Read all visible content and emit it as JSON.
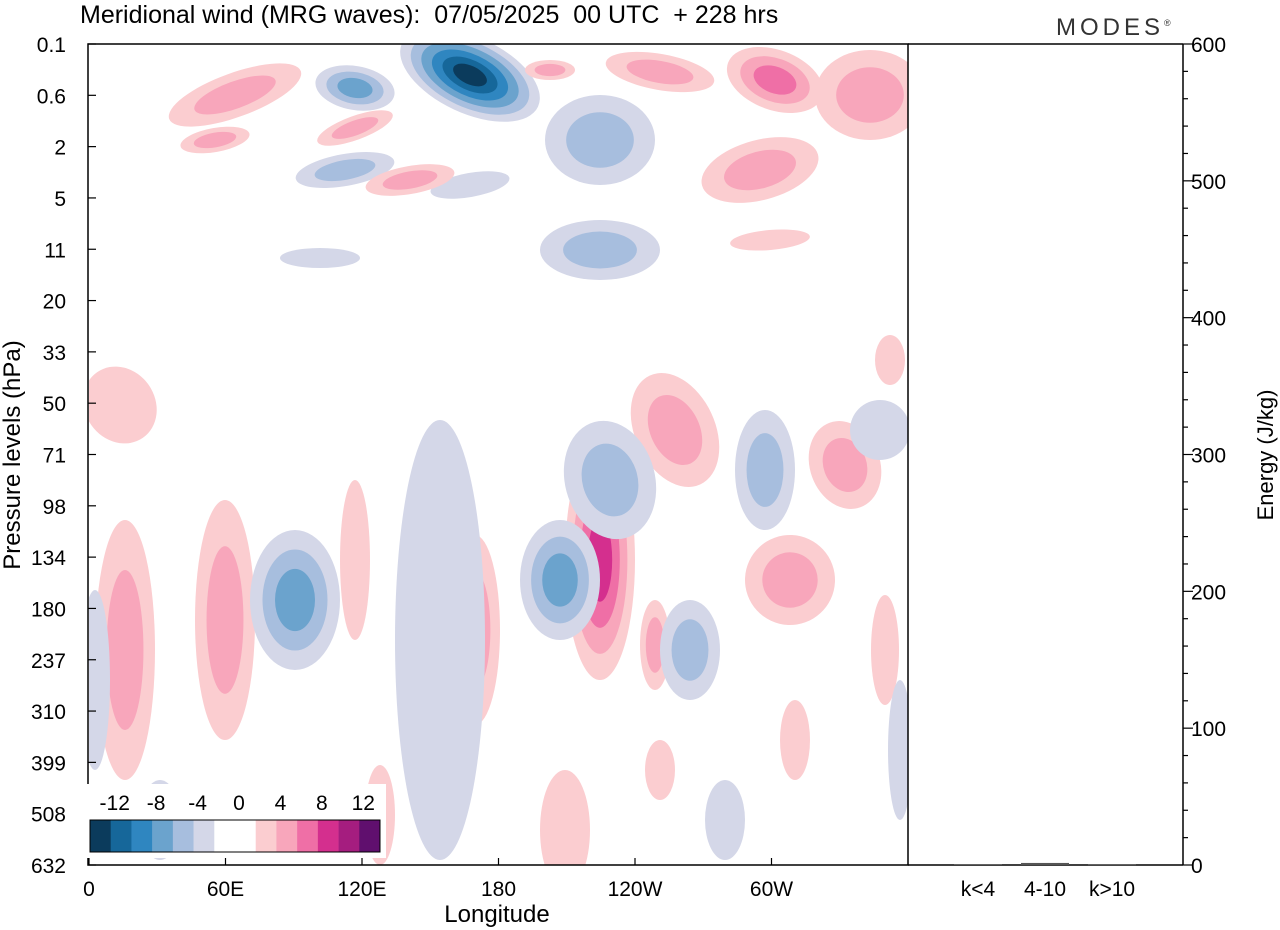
{
  "header": {
    "title": "Meridional wind (MRG waves):  07/05/2025  00 UTC  + 228 hrs",
    "brand": "MODES",
    "brand_mark": "®"
  },
  "chart_data": [
    {
      "type": "heatmap",
      "title": "Meridional wind (MRG waves):  07/05/2025  00 UTC  + 228 hrs",
      "xlabel": "Longitude",
      "ylabel": "Pressure levels (hPa)",
      "x_ticks": [
        "0",
        "60E",
        "120E",
        "180",
        "120W",
        "60W"
      ],
      "x_tick_degrees": [
        0,
        60,
        120,
        180,
        240,
        300
      ],
      "xlim": [
        0,
        360
      ],
      "y_ticks": [
        "0.1",
        "0.6",
        "2",
        "5",
        "11",
        "20",
        "33",
        "50",
        "71",
        "98",
        "134",
        "180",
        "237",
        "310",
        "399",
        "508",
        "632"
      ],
      "colorbar": {
        "labels": [
          "-12",
          "-8",
          "-4",
          "0",
          "4",
          "8",
          "12"
        ],
        "colors": [
          "#0b3b5c",
          "#16679a",
          "#2f86c0",
          "#6ba3cd",
          "#a7bede",
          "#d4d7e8",
          "#ffffff",
          "#ffffff",
          "#fbcdd0",
          "#f8a6bb",
          "#ef6fa6",
          "#d42f8e",
          "#a51d7f",
          "#600f6e"
        ]
      },
      "grid": false,
      "features": [
        {
          "name": "strongest negative core",
          "lon": 165,
          "p": 0.3,
          "value": -14
        },
        {
          "name": "negative core",
          "lon": 120,
          "p": 0.45,
          "value": -8
        },
        {
          "name": "positive core",
          "lon": 295,
          "p": 0.45,
          "value": 6
        },
        {
          "name": "positive core",
          "lon": 227,
          "p": 134,
          "value": 10
        },
        {
          "name": "negative core",
          "lon": 92,
          "p": 180,
          "value": -7
        },
        {
          "name": "positive core",
          "lon": 17,
          "p": 290,
          "value": 6
        },
        {
          "name": "positive core",
          "lon": 170,
          "p": 180,
          "value": 6
        },
        {
          "name": "negative core",
          "lon": 207,
          "p": 160,
          "value": -6
        }
      ]
    },
    {
      "type": "bar",
      "ylabel": "Energy (J/kg)",
      "categories": [
        "k<4",
        "4-10",
        "k>10"
      ],
      "values": [
        0.5,
        1.5,
        0.3
      ],
      "ylim": [
        0,
        600
      ],
      "y_ticks": [
        "0",
        "100",
        "200",
        "300",
        "400",
        "500",
        "600"
      ]
    }
  ]
}
